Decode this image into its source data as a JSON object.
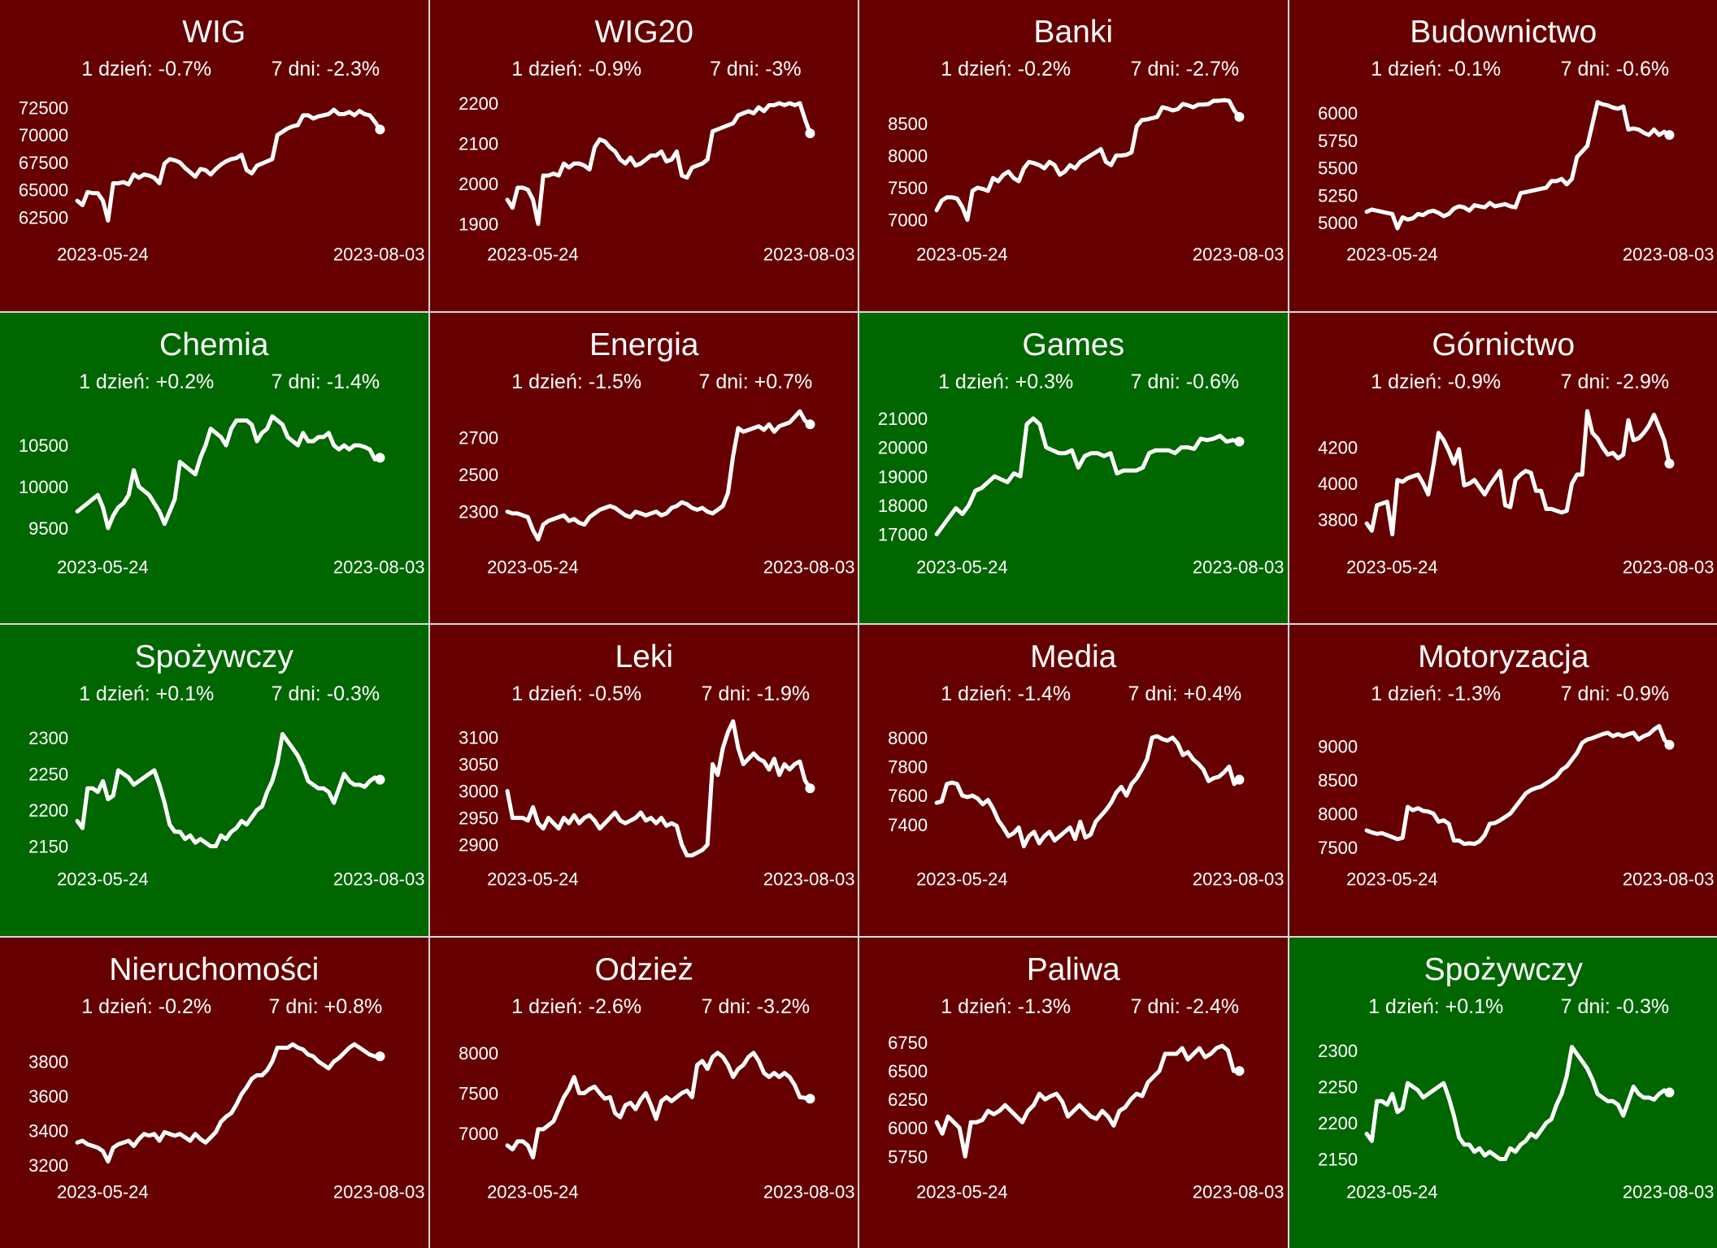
{
  "colors": {
    "down": "#660000",
    "up": "#006600",
    "line": "#ffffff",
    "divider": "#d9d9d9"
  },
  "chart_data": [
    {
      "type": "line",
      "title": "WIG",
      "trend": "down",
      "day_change": "1 dzień: -0.7%",
      "week_change": "7 dni: -2.3%",
      "x_labels": [
        "2023-05-24",
        "2023-08-03"
      ],
      "yticks": [
        62500,
        65000,
        67500,
        70000,
        72500
      ],
      "ylim": [
        60800,
        74000
      ],
      "values": [
        64000,
        63600,
        64800,
        64700,
        64700,
        64000,
        62200,
        65600,
        65600,
        65700,
        65500,
        66400,
        66100,
        66400,
        66300,
        66100,
        65600,
        67400,
        67800,
        67700,
        67500,
        67000,
        66600,
        66200,
        66900,
        66800,
        66400,
        66900,
        67300,
        67600,
        67800,
        67900,
        68200,
        66800,
        66500,
        67200,
        67400,
        67600,
        67800,
        70000,
        70300,
        70600,
        70800,
        70900,
        71800,
        71800,
        71500,
        71700,
        71800,
        71900,
        72300,
        71900,
        71900,
        72100,
        71800,
        72200,
        71900,
        71800,
        71200,
        70500
      ]
    },
    {
      "type": "line",
      "title": "WIG20",
      "trend": "down",
      "day_change": "1 dzień: -0.9%",
      "week_change": "7 dni: -3%",
      "x_labels": [
        "2023-05-24",
        "2023-08-03"
      ],
      "yticks": [
        1900,
        2000,
        2100,
        2200
      ],
      "ylim": [
        1870,
        2230
      ],
      "values": [
        1960,
        1940,
        1990,
        1990,
        1985,
        1960,
        1900,
        2020,
        2020,
        2025,
        2020,
        2050,
        2040,
        2050,
        2050,
        2045,
        2035,
        2090,
        2110,
        2105,
        2090,
        2080,
        2060,
        2050,
        2065,
        2045,
        2050,
        2060,
        2070,
        2070,
        2080,
        2055,
        2060,
        2080,
        2020,
        2015,
        2040,
        2045,
        2050,
        2060,
        2130,
        2135,
        2140,
        2145,
        2150,
        2170,
        2175,
        2180,
        2175,
        2190,
        2180,
        2195,
        2195,
        2200,
        2195,
        2200,
        2195,
        2200,
        2160,
        2125
      ]
    },
    {
      "type": "line",
      "title": "Banki",
      "trend": "down",
      "day_change": "1 dzień: -0.2%",
      "week_change": "7 dni: -2.7%",
      "x_labels": [
        "2023-05-24",
        "2023-08-03"
      ],
      "yticks": [
        7000,
        7500,
        8000,
        8500
      ],
      "ylim": [
        6750,
        9000
      ],
      "values": [
        7150,
        7300,
        7350,
        7350,
        7330,
        7200,
        7000,
        7450,
        7500,
        7480,
        7450,
        7650,
        7600,
        7700,
        7750,
        7650,
        7600,
        7800,
        7900,
        7880,
        7850,
        7800,
        7900,
        7850,
        7700,
        7750,
        7850,
        7800,
        7900,
        7950,
        8000,
        8050,
        8100,
        7900,
        7850,
        8000,
        8000,
        8010,
        8050,
        8450,
        8550,
        8560,
        8580,
        8600,
        8750,
        8730,
        8700,
        8720,
        8800,
        8780,
        8750,
        8790,
        8790,
        8800,
        8850,
        8850,
        8860,
        8850,
        8700,
        8600
      ]
    },
    {
      "type": "line",
      "title": "Budownictwo",
      "trend": "down",
      "day_change": "1 dzień: -0.1%",
      "week_change": "7 dni: -0.6%",
      "x_labels": [
        "2023-05-24",
        "2023-08-03"
      ],
      "yticks": [
        5000,
        5250,
        5500,
        5750,
        6000
      ],
      "ylim": [
        4880,
        6200
      ],
      "values": [
        5100,
        5120,
        5110,
        5100,
        5090,
        5080,
        4950,
        5050,
        5030,
        5040,
        5080,
        5070,
        5100,
        5110,
        5090,
        5060,
        5080,
        5130,
        5150,
        5140,
        5110,
        5160,
        5150,
        5140,
        5180,
        5150,
        5160,
        5170,
        5150,
        5140,
        5270,
        5280,
        5290,
        5300,
        5310,
        5320,
        5380,
        5380,
        5400,
        5350,
        5400,
        5600,
        5650,
        5700,
        5900,
        6100,
        6080,
        6070,
        6050,
        6040,
        6060,
        5850,
        5860,
        5850,
        5820,
        5800,
        5850,
        5800,
        5830,
        5800
      ]
    },
    {
      "type": "line",
      "title": "Chemia",
      "trend": "up",
      "day_change": "1 dzień: +0.2%",
      "week_change": "7 dni: -1.4%",
      "x_labels": [
        "2023-05-24",
        "2023-08-03"
      ],
      "yticks": [
        9500,
        10000,
        10500
      ],
      "ylim": [
        9250,
        11000
      ],
      "values": [
        9700,
        9750,
        9800,
        9850,
        9900,
        9750,
        9500,
        9650,
        9750,
        9800,
        9900,
        10200,
        10000,
        9950,
        9900,
        9800,
        9700,
        9550,
        9700,
        9850,
        10300,
        10250,
        10200,
        10150,
        10350,
        10500,
        10700,
        10650,
        10600,
        10500,
        10700,
        10800,
        10800,
        10800,
        10750,
        10550,
        10650,
        10700,
        10850,
        10800,
        10750,
        10600,
        10550,
        10500,
        10650,
        10550,
        10550,
        10600,
        10600,
        10650,
        10500,
        10450,
        10500,
        10450,
        10500,
        10500,
        10480,
        10450,
        10330,
        10350
      ]
    },
    {
      "type": "line",
      "title": "Energia",
      "trend": "down",
      "day_change": "1 dzień: -1.5%",
      "week_change": "7 dni: +0.7%",
      "x_labels": [
        "2023-05-24",
        "2023-08-03"
      ],
      "yticks": [
        2300,
        2500,
        2700
      ],
      "ylim": [
        2100,
        2880
      ],
      "values": [
        2300,
        2290,
        2290,
        2280,
        2270,
        2200,
        2150,
        2230,
        2250,
        2260,
        2270,
        2280,
        2250,
        2260,
        2240,
        2230,
        2270,
        2290,
        2310,
        2320,
        2330,
        2320,
        2300,
        2280,
        2270,
        2300,
        2290,
        2280,
        2290,
        2300,
        2280,
        2290,
        2320,
        2330,
        2350,
        2340,
        2320,
        2310,
        2320,
        2300,
        2290,
        2310,
        2330,
        2400,
        2600,
        2750,
        2730,
        2740,
        2750,
        2760,
        2740,
        2770,
        2730,
        2760,
        2770,
        2780,
        2810,
        2840,
        2790,
        2770
      ]
    },
    {
      "type": "line",
      "title": "Games",
      "trend": "up",
      "day_change": "1 dzień: +0.3%",
      "week_change": "7 dni: -0.6%",
      "x_labels": [
        "2023-05-24",
        "2023-08-03"
      ],
      "yticks": [
        17000,
        18000,
        19000,
        20000,
        21000
      ],
      "ylim": [
        16500,
        21500
      ],
      "values": [
        17000,
        17300,
        17600,
        17900,
        17700,
        18000,
        18500,
        18600,
        18800,
        19000,
        18900,
        18800,
        19100,
        19000,
        20800,
        21000,
        20800,
        20000,
        19900,
        19800,
        19800,
        19900,
        19300,
        19700,
        19800,
        19800,
        19700,
        19800,
        19100,
        19200,
        19200,
        19200,
        19300,
        19800,
        19900,
        19900,
        19900,
        19800,
        20000,
        20000,
        19950,
        20300,
        20250,
        20300,
        20400,
        20200,
        20250,
        20200
      ]
    },
    {
      "type": "line",
      "title": "Górnictwo",
      "trend": "down",
      "day_change": "1 dzień: -0.9%",
      "week_change": "7 dni: -2.9%",
      "x_labels": [
        "2023-05-24",
        "2023-08-03"
      ],
      "yticks": [
        3800,
        4000,
        4200
      ],
      "ylim": [
        3640,
        4440
      ],
      "values": [
        3780,
        3740,
        3880,
        3890,
        3900,
        3720,
        4020,
        4010,
        4030,
        4040,
        4050,
        4000,
        3940,
        4100,
        4280,
        4240,
        4180,
        4110,
        4190,
        3990,
        4000,
        4020,
        3980,
        3940,
        3990,
        4030,
        4070,
        3880,
        3870,
        4020,
        4050,
        4070,
        4060,
        3960,
        3960,
        3860,
        3860,
        3850,
        3840,
        3850,
        4000,
        4050,
        4050,
        4400,
        4280,
        4250,
        4200,
        4160,
        4170,
        4140,
        4160,
        4350,
        4240,
        4250,
        4280,
        4320,
        4380,
        4310,
        4240,
        4110
      ]
    },
    {
      "type": "line",
      "title": "Spożywczy",
      "trend": "up",
      "day_change": "1 dzień: +0.1%",
      "week_change": "7 dni: -0.3%",
      "x_labels": [
        "2023-05-24",
        "2023-08-03"
      ],
      "yticks": [
        2150,
        2200,
        2250,
        2300
      ],
      "ylim": [
        2130,
        2330
      ],
      "values": [
        2185,
        2175,
        2230,
        2230,
        2225,
        2240,
        2215,
        2220,
        2255,
        2250,
        2245,
        2235,
        2240,
        2245,
        2250,
        2255,
        2235,
        2210,
        2180,
        2170,
        2170,
        2160,
        2165,
        2155,
        2160,
        2155,
        2150,
        2150,
        2165,
        2160,
        2170,
        2175,
        2185,
        2180,
        2190,
        2200,
        2205,
        2225,
        2240,
        2265,
        2305,
        2295,
        2285,
        2275,
        2260,
        2240,
        2235,
        2230,
        2230,
        2225,
        2210,
        2230,
        2250,
        2240,
        2235,
        2235,
        2232,
        2240,
        2245,
        2242
      ]
    },
    {
      "type": "line",
      "title": "Leki",
      "trend": "down",
      "day_change": "1 dzień: -0.5%",
      "week_change": "7 dni: -1.9%",
      "x_labels": [
        "2023-05-24",
        "2023-08-03"
      ],
      "yticks": [
        2900,
        2950,
        3000,
        3050,
        3100
      ],
      "ylim": [
        2870,
        3140
      ],
      "values": [
        3000,
        2950,
        2950,
        2950,
        2945,
        2970,
        2940,
        2930,
        2950,
        2940,
        2930,
        2950,
        2940,
        2955,
        2940,
        2950,
        2955,
        2945,
        2930,
        2940,
        2950,
        2960,
        2945,
        2940,
        2945,
        2950,
        2960,
        2945,
        2950,
        2940,
        2950,
        2935,
        2940,
        2935,
        2900,
        2880,
        2880,
        2885,
        2890,
        2900,
        3050,
        3030,
        3080,
        3110,
        3130,
        3080,
        3050,
        3060,
        3070,
        3060,
        3055,
        3040,
        3060,
        3030,
        3050,
        3040,
        3050,
        3055,
        3020,
        3005
      ]
    },
    {
      "type": "line",
      "title": "Media",
      "trend": "down",
      "day_change": "1 dzień: -1.4%",
      "week_change": "7 dni: +0.4%",
      "x_labels": [
        "2023-05-24",
        "2023-08-03"
      ],
      "yticks": [
        7400,
        7600,
        7800,
        8000
      ],
      "ylim": [
        7150,
        8150
      ],
      "values": [
        7550,
        7560,
        7680,
        7690,
        7680,
        7600,
        7590,
        7600,
        7580,
        7540,
        7570,
        7510,
        7430,
        7380,
        7320,
        7340,
        7380,
        7250,
        7320,
        7350,
        7270,
        7320,
        7350,
        7290,
        7320,
        7350,
        7380,
        7300,
        7420,
        7310,
        7330,
        7420,
        7460,
        7500,
        7550,
        7620,
        7660,
        7600,
        7680,
        7720,
        7780,
        7850,
        8000,
        8010,
        7990,
        7980,
        8000,
        7960,
        7880,
        7900,
        7850,
        7820,
        7780,
        7700,
        7720,
        7730,
        7760,
        7800,
        7680,
        7710
      ]
    },
    {
      "type": "line",
      "title": "Motoryzacja",
      "trend": "down",
      "day_change": "1 dzień: -1.3%",
      "week_change": "7 dni: -0.9%",
      "x_labels": [
        "2023-05-24",
        "2023-08-03"
      ],
      "yticks": [
        7500,
        8000,
        8500,
        9000
      ],
      "ylim": [
        7300,
        9450
      ],
      "values": [
        7750,
        7720,
        7700,
        7710,
        7680,
        7650,
        7620,
        7640,
        8100,
        8050,
        8080,
        8040,
        8030,
        8000,
        7880,
        7900,
        7850,
        7600,
        7600,
        7550,
        7560,
        7550,
        7590,
        7680,
        7850,
        7860,
        7900,
        7950,
        8000,
        8100,
        8200,
        8300,
        8350,
        8380,
        8400,
        8450,
        8500,
        8550,
        8650,
        8700,
        8800,
        8900,
        9050,
        9100,
        9120,
        9150,
        9180,
        9200,
        9150,
        9180,
        9150,
        9180,
        9200,
        9100,
        9150,
        9180,
        9250,
        9300,
        9100,
        9020
      ]
    },
    {
      "type": "line",
      "title": "Nieruchomości",
      "trend": "down",
      "day_change": "1 dzień: -0.2%",
      "week_change": "7 dni: +0.8%",
      "x_labels": [
        "2023-05-24",
        "2023-08-03"
      ],
      "yticks": [
        3200,
        3400,
        3600,
        3800
      ],
      "ylim": [
        3150,
        3990
      ],
      "values": [
        3330,
        3340,
        3320,
        3310,
        3300,
        3280,
        3220,
        3300,
        3320,
        3330,
        3340,
        3310,
        3350,
        3380,
        3370,
        3380,
        3340,
        3390,
        3380,
        3370,
        3380,
        3360,
        3340,
        3380,
        3350,
        3330,
        3360,
        3390,
        3450,
        3480,
        3500,
        3550,
        3610,
        3650,
        3700,
        3720,
        3720,
        3750,
        3800,
        3880,
        3880,
        3880,
        3900,
        3880,
        3870,
        3840,
        3830,
        3800,
        3780,
        3760,
        3800,
        3820,
        3850,
        3880,
        3900,
        3880,
        3860,
        3840,
        3830,
        3830
      ]
    },
    {
      "type": "line",
      "title": "Odzież",
      "trend": "down",
      "day_change": "1 dzień: -2.6%",
      "week_change": "7 dni: -3.2%",
      "x_labels": [
        "2023-05-24",
        "2023-08-03"
      ],
      "yticks": [
        7000,
        7500,
        8000
      ],
      "ylim": [
        6500,
        8300
      ],
      "values": [
        6850,
        6800,
        6900,
        6900,
        6850,
        6700,
        7050,
        7050,
        7100,
        7150,
        7300,
        7450,
        7550,
        7700,
        7500,
        7500,
        7550,
        7580,
        7500,
        7430,
        7450,
        7250,
        7200,
        7350,
        7380,
        7300,
        7420,
        7500,
        7350,
        7180,
        7400,
        7450,
        7400,
        7450,
        7500,
        7530,
        7450,
        7850,
        7900,
        7800,
        7950,
        8000,
        7950,
        7850,
        7700,
        7800,
        7850,
        7950,
        8000,
        7900,
        7750,
        7700,
        7750,
        7700,
        7750,
        7700,
        7600,
        7450,
        7440,
        7430
      ]
    },
    {
      "type": "line",
      "title": "Paliwa",
      "trend": "down",
      "day_change": "1 dzień: -1.3%",
      "week_change": "7 dni: -2.4%",
      "x_labels": [
        "2023-05-24",
        "2023-08-03"
      ],
      "yticks": [
        5750,
        6000,
        6250,
        6500,
        6750
      ],
      "ylim": [
        5600,
        6870
      ],
      "values": [
        6050,
        5950,
        6100,
        6050,
        6000,
        5750,
        6050,
        6050,
        6070,
        6150,
        6120,
        6150,
        6200,
        6150,
        6100,
        6050,
        6150,
        6200,
        6300,
        6250,
        6280,
        6300,
        6230,
        6100,
        6150,
        6200,
        6150,
        6100,
        6080,
        6150,
        6100,
        6020,
        6150,
        6180,
        6250,
        6300,
        6280,
        6400,
        6450,
        6500,
        6650,
        6650,
        6650,
        6700,
        6600,
        6650,
        6700,
        6620,
        6650,
        6700,
        6720,
        6680,
        6500,
        6500
      ]
    },
    {
      "type": "line",
      "title": "Spożywczy",
      "trend": "up",
      "day_change": "1 dzień: +0.1%",
      "week_change": "7 dni: -0.3%",
      "x_labels": [
        "2023-05-24",
        "2023-08-03"
      ],
      "yticks": [
        2150,
        2200,
        2250,
        2300
      ],
      "ylim": [
        2130,
        2330
      ],
      "values": [
        2185,
        2175,
        2230,
        2230,
        2225,
        2240,
        2215,
        2220,
        2255,
        2250,
        2245,
        2235,
        2240,
        2245,
        2250,
        2255,
        2235,
        2210,
        2180,
        2170,
        2170,
        2160,
        2165,
        2155,
        2160,
        2155,
        2150,
        2150,
        2165,
        2160,
        2170,
        2175,
        2185,
        2180,
        2190,
        2200,
        2205,
        2225,
        2240,
        2265,
        2305,
        2295,
        2285,
        2275,
        2260,
        2240,
        2235,
        2230,
        2230,
        2225,
        2210,
        2230,
        2250,
        2240,
        2235,
        2235,
        2232,
        2240,
        2245,
        2242
      ]
    }
  ]
}
